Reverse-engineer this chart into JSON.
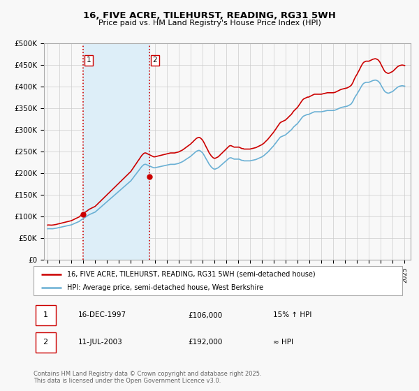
{
  "title": "16, FIVE ACRE, TILEHURST, READING, RG31 5WH",
  "subtitle": "Price paid vs. HM Land Registry's House Price Index (HPI)",
  "hpi_label": "HPI: Average price, semi-detached house, West Berkshire",
  "property_label": "16, FIVE ACRE, TILEHURST, READING, RG31 5WH (semi-detached house)",
  "sale1_label": "1",
  "sale1_date": "16-DEC-1997",
  "sale1_price": 106000,
  "sale1_hpi": "15% ↑ HPI",
  "sale2_label": "2",
  "sale2_date": "11-JUL-2003",
  "sale2_price": 192000,
  "sale2_hpi": "≈ HPI",
  "sale1_year": 1997.96,
  "sale2_year": 2003.53,
  "hpi_color": "#6ab0d4",
  "price_color": "#cc0000",
  "sale_marker_color": "#cc0000",
  "shading_color": "#ddeef8",
  "vline_color": "#cc0000",
  "grid_color": "#cccccc",
  "background_color": "#f8f8f8",
  "footer": "Contains HM Land Registry data © Crown copyright and database right 2025.\nThis data is licensed under the Open Government Licence v3.0.",
  "ylim": [
    0,
    500000
  ],
  "yticks": [
    0,
    50000,
    100000,
    150000,
    200000,
    250000,
    300000,
    350000,
    400000,
    450000,
    500000
  ],
  "xlim_start": 1994.7,
  "xlim_end": 2025.5,
  "hpi_data": [
    [
      1995.0,
      72000
    ],
    [
      1995.08,
      72200
    ],
    [
      1995.17,
      72100
    ],
    [
      1995.25,
      72000
    ],
    [
      1995.33,
      71800
    ],
    [
      1995.42,
      72000
    ],
    [
      1995.5,
      72300
    ],
    [
      1995.58,
      72600
    ],
    [
      1995.67,
      73000
    ],
    [
      1995.75,
      73400
    ],
    [
      1995.83,
      74000
    ],
    [
      1995.92,
      74500
    ],
    [
      1996.0,
      75000
    ],
    [
      1996.08,
      75500
    ],
    [
      1996.17,
      76000
    ],
    [
      1996.25,
      76500
    ],
    [
      1996.33,
      77000
    ],
    [
      1996.42,
      77500
    ],
    [
      1996.5,
      78000
    ],
    [
      1996.58,
      78500
    ],
    [
      1996.67,
      79000
    ],
    [
      1996.75,
      79500
    ],
    [
      1996.83,
      80000
    ],
    [
      1996.92,
      80500
    ],
    [
      1997.0,
      81000
    ],
    [
      1997.08,
      82000
    ],
    [
      1997.17,
      83000
    ],
    [
      1997.25,
      84000
    ],
    [
      1997.33,
      85000
    ],
    [
      1997.42,
      86000
    ],
    [
      1997.5,
      87000
    ],
    [
      1997.58,
      88000
    ],
    [
      1997.67,
      89000
    ],
    [
      1997.75,
      91000
    ],
    [
      1997.83,
      92500
    ],
    [
      1997.92,
      94000
    ],
    [
      1998.0,
      95500
    ],
    [
      1998.08,
      97000
    ],
    [
      1998.17,
      98500
    ],
    [
      1998.25,
      100000
    ],
    [
      1998.33,
      101500
    ],
    [
      1998.42,
      103000
    ],
    [
      1998.5,
      104500
    ],
    [
      1998.58,
      105500
    ],
    [
      1998.67,
      106500
    ],
    [
      1998.75,
      107500
    ],
    [
      1998.83,
      108500
    ],
    [
      1998.92,
      109500
    ],
    [
      1999.0,
      110500
    ],
    [
      1999.08,
      112500
    ],
    [
      1999.17,
      114500
    ],
    [
      1999.25,
      116500
    ],
    [
      1999.33,
      118500
    ],
    [
      1999.42,
      120500
    ],
    [
      1999.5,
      122500
    ],
    [
      1999.58,
      124500
    ],
    [
      1999.67,
      126500
    ],
    [
      1999.75,
      128500
    ],
    [
      1999.83,
      130500
    ],
    [
      1999.92,
      132500
    ],
    [
      2000.0,
      134500
    ],
    [
      2000.08,
      136500
    ],
    [
      2000.17,
      138500
    ],
    [
      2000.25,
      140500
    ],
    [
      2000.33,
      142500
    ],
    [
      2000.42,
      144500
    ],
    [
      2000.5,
      146500
    ],
    [
      2000.58,
      148500
    ],
    [
      2000.67,
      150500
    ],
    [
      2000.75,
      152500
    ],
    [
      2000.83,
      154500
    ],
    [
      2000.92,
      156500
    ],
    [
      2001.0,
      158500
    ],
    [
      2001.08,
      160500
    ],
    [
      2001.17,
      162500
    ],
    [
      2001.25,
      164500
    ],
    [
      2001.33,
      166500
    ],
    [
      2001.42,
      168500
    ],
    [
      2001.5,
      170500
    ],
    [
      2001.58,
      172500
    ],
    [
      2001.67,
      174500
    ],
    [
      2001.75,
      176500
    ],
    [
      2001.83,
      178500
    ],
    [
      2001.92,
      180500
    ],
    [
      2002.0,
      182500
    ],
    [
      2002.08,
      185500
    ],
    [
      2002.17,
      188500
    ],
    [
      2002.25,
      191500
    ],
    [
      2002.33,
      194500
    ],
    [
      2002.42,
      197500
    ],
    [
      2002.5,
      200500
    ],
    [
      2002.58,
      203500
    ],
    [
      2002.67,
      206500
    ],
    [
      2002.75,
      209500
    ],
    [
      2002.83,
      212500
    ],
    [
      2002.92,
      215500
    ],
    [
      2003.0,
      217500
    ],
    [
      2003.08,
      219500
    ],
    [
      2003.17,
      220500
    ],
    [
      2003.25,
      220500
    ],
    [
      2003.33,
      219500
    ],
    [
      2003.42,
      218500
    ],
    [
      2003.5,
      217500
    ],
    [
      2003.58,
      216500
    ],
    [
      2003.67,
      215500
    ],
    [
      2003.75,
      214500
    ],
    [
      2003.83,
      213500
    ],
    [
      2003.92,
      212500
    ],
    [
      2004.0,
      212500
    ],
    [
      2004.08,
      213000
    ],
    [
      2004.17,
      213500
    ],
    [
      2004.25,
      214000
    ],
    [
      2004.33,
      214500
    ],
    [
      2004.42,
      215000
    ],
    [
      2004.5,
      215500
    ],
    [
      2004.58,
      216000
    ],
    [
      2004.67,
      216500
    ],
    [
      2004.75,
      217000
    ],
    [
      2004.83,
      217500
    ],
    [
      2004.92,
      218000
    ],
    [
      2005.0,
      218500
    ],
    [
      2005.08,
      219000
    ],
    [
      2005.17,
      219500
    ],
    [
      2005.25,
      220000
    ],
    [
      2005.33,
      220500
    ],
    [
      2005.42,
      220500
    ],
    [
      2005.5,
      220500
    ],
    [
      2005.58,
      220500
    ],
    [
      2005.67,
      220500
    ],
    [
      2005.75,
      221000
    ],
    [
      2005.83,
      221500
    ],
    [
      2005.92,
      222000
    ],
    [
      2006.0,
      222500
    ],
    [
      2006.08,
      223500
    ],
    [
      2006.17,
      224500
    ],
    [
      2006.25,
      225500
    ],
    [
      2006.33,
      226500
    ],
    [
      2006.42,
      228000
    ],
    [
      2006.5,
      229500
    ],
    [
      2006.58,
      231000
    ],
    [
      2006.67,
      232500
    ],
    [
      2006.75,
      234000
    ],
    [
      2006.83,
      235500
    ],
    [
      2006.92,
      237000
    ],
    [
      2007.0,
      238500
    ],
    [
      2007.08,
      240500
    ],
    [
      2007.17,
      242500
    ],
    [
      2007.25,
      244500
    ],
    [
      2007.33,
      246500
    ],
    [
      2007.42,
      248500
    ],
    [
      2007.5,
      250500
    ],
    [
      2007.58,
      251500
    ],
    [
      2007.67,
      252500
    ],
    [
      2007.75,
      252500
    ],
    [
      2007.83,
      251500
    ],
    [
      2007.92,
      249500
    ],
    [
      2008.0,
      247500
    ],
    [
      2008.08,
      244500
    ],
    [
      2008.17,
      240500
    ],
    [
      2008.25,
      236500
    ],
    [
      2008.33,
      232500
    ],
    [
      2008.42,
      228500
    ],
    [
      2008.5,
      224500
    ],
    [
      2008.58,
      220500
    ],
    [
      2008.67,
      217500
    ],
    [
      2008.75,
      214500
    ],
    [
      2008.83,
      212500
    ],
    [
      2008.92,
      210500
    ],
    [
      2009.0,
      209500
    ],
    [
      2009.08,
      209500
    ],
    [
      2009.17,
      210500
    ],
    [
      2009.25,
      211500
    ],
    [
      2009.33,
      212500
    ],
    [
      2009.42,
      214500
    ],
    [
      2009.5,
      216500
    ],
    [
      2009.58,
      218500
    ],
    [
      2009.67,
      220500
    ],
    [
      2009.75,
      222500
    ],
    [
      2009.83,
      224500
    ],
    [
      2009.92,
      226500
    ],
    [
      2010.0,
      228500
    ],
    [
      2010.08,
      230500
    ],
    [
      2010.17,
      232500
    ],
    [
      2010.25,
      234500
    ],
    [
      2010.33,
      235500
    ],
    [
      2010.42,
      235500
    ],
    [
      2010.5,
      234500
    ],
    [
      2010.58,
      233500
    ],
    [
      2010.67,
      232500
    ],
    [
      2010.75,
      232500
    ],
    [
      2010.83,
      232500
    ],
    [
      2010.92,
      232500
    ],
    [
      2011.0,
      232500
    ],
    [
      2011.08,
      232500
    ],
    [
      2011.17,
      231500
    ],
    [
      2011.25,
      230500
    ],
    [
      2011.33,
      229500
    ],
    [
      2011.42,
      229500
    ],
    [
      2011.5,
      228500
    ],
    [
      2011.58,
      228500
    ],
    [
      2011.67,
      228500
    ],
    [
      2011.75,
      228500
    ],
    [
      2011.83,
      228500
    ],
    [
      2011.92,
      228500
    ],
    [
      2012.0,
      228500
    ],
    [
      2012.08,
      229000
    ],
    [
      2012.17,
      229500
    ],
    [
      2012.25,
      230000
    ],
    [
      2012.33,
      230500
    ],
    [
      2012.42,
      231000
    ],
    [
      2012.5,
      231500
    ],
    [
      2012.58,
      232500
    ],
    [
      2012.67,
      233500
    ],
    [
      2012.75,
      234500
    ],
    [
      2012.83,
      235500
    ],
    [
      2012.92,
      236500
    ],
    [
      2013.0,
      237500
    ],
    [
      2013.08,
      239000
    ],
    [
      2013.17,
      240500
    ],
    [
      2013.25,
      242500
    ],
    [
      2013.33,
      244500
    ],
    [
      2013.42,
      246500
    ],
    [
      2013.5,
      248500
    ],
    [
      2013.58,
      251000
    ],
    [
      2013.67,
      253500
    ],
    [
      2013.75,
      256000
    ],
    [
      2013.83,
      258500
    ],
    [
      2013.92,
      261000
    ],
    [
      2014.0,
      263500
    ],
    [
      2014.08,
      266500
    ],
    [
      2014.17,
      269500
    ],
    [
      2014.25,
      272500
    ],
    [
      2014.33,
      275500
    ],
    [
      2014.42,
      278500
    ],
    [
      2014.5,
      281500
    ],
    [
      2014.58,
      283500
    ],
    [
      2014.67,
      284500
    ],
    [
      2014.75,
      285500
    ],
    [
      2014.83,
      286500
    ],
    [
      2014.92,
      287500
    ],
    [
      2015.0,
      288500
    ],
    [
      2015.08,
      290500
    ],
    [
      2015.17,
      292500
    ],
    [
      2015.25,
      294500
    ],
    [
      2015.33,
      296500
    ],
    [
      2015.42,
      298500
    ],
    [
      2015.5,
      300500
    ],
    [
      2015.58,
      303500
    ],
    [
      2015.67,
      306500
    ],
    [
      2015.75,
      308500
    ],
    [
      2015.83,
      310500
    ],
    [
      2015.92,
      312500
    ],
    [
      2016.0,
      314500
    ],
    [
      2016.08,
      317500
    ],
    [
      2016.17,
      320500
    ],
    [
      2016.25,
      323500
    ],
    [
      2016.33,
      326500
    ],
    [
      2016.42,
      329500
    ],
    [
      2016.5,
      331500
    ],
    [
      2016.58,
      332500
    ],
    [
      2016.67,
      333500
    ],
    [
      2016.75,
      334500
    ],
    [
      2016.83,
      335500
    ],
    [
      2016.92,
      335500
    ],
    [
      2017.0,
      336500
    ],
    [
      2017.08,
      337500
    ],
    [
      2017.17,
      338500
    ],
    [
      2017.25,
      339500
    ],
    [
      2017.33,
      340500
    ],
    [
      2017.42,
      341500
    ],
    [
      2017.5,
      341500
    ],
    [
      2017.58,
      341500
    ],
    [
      2017.67,
      341500
    ],
    [
      2017.75,
      341500
    ],
    [
      2017.83,
      341500
    ],
    [
      2017.92,
      341500
    ],
    [
      2018.0,
      341500
    ],
    [
      2018.08,
      342000
    ],
    [
      2018.17,
      342500
    ],
    [
      2018.25,
      343000
    ],
    [
      2018.33,
      343500
    ],
    [
      2018.42,
      344000
    ],
    [
      2018.5,
      344500
    ],
    [
      2018.58,
      344500
    ],
    [
      2018.67,
      344500
    ],
    [
      2018.75,
      344500
    ],
    [
      2018.83,
      344500
    ],
    [
      2018.92,
      344500
    ],
    [
      2019.0,
      344500
    ],
    [
      2019.08,
      345000
    ],
    [
      2019.17,
      345500
    ],
    [
      2019.25,
      346500
    ],
    [
      2019.33,
      347500
    ],
    [
      2019.42,
      348500
    ],
    [
      2019.5,
      349500
    ],
    [
      2019.58,
      350500
    ],
    [
      2019.67,
      351500
    ],
    [
      2019.75,
      352000
    ],
    [
      2019.83,
      352500
    ],
    [
      2019.92,
      353000
    ],
    [
      2020.0,
      353500
    ],
    [
      2020.08,
      354000
    ],
    [
      2020.17,
      354500
    ],
    [
      2020.25,
      355500
    ],
    [
      2020.33,
      356500
    ],
    [
      2020.42,
      358000
    ],
    [
      2020.5,
      359500
    ],
    [
      2020.58,
      362500
    ],
    [
      2020.67,
      366500
    ],
    [
      2020.75,
      371500
    ],
    [
      2020.83,
      375500
    ],
    [
      2020.92,
      379500
    ],
    [
      2021.0,
      382500
    ],
    [
      2021.08,
      386500
    ],
    [
      2021.17,
      390500
    ],
    [
      2021.25,
      394500
    ],
    [
      2021.33,
      398500
    ],
    [
      2021.42,
      402500
    ],
    [
      2021.5,
      405500
    ],
    [
      2021.58,
      407500
    ],
    [
      2021.67,
      408500
    ],
    [
      2021.75,
      409500
    ],
    [
      2021.83,
      409500
    ],
    [
      2021.92,
      409500
    ],
    [
      2022.0,
      409500
    ],
    [
      2022.08,
      410500
    ],
    [
      2022.17,
      411500
    ],
    [
      2022.25,
      412500
    ],
    [
      2022.33,
      413500
    ],
    [
      2022.42,
      414000
    ],
    [
      2022.5,
      414500
    ],
    [
      2022.58,
      414500
    ],
    [
      2022.67,
      413500
    ],
    [
      2022.75,
      412500
    ],
    [
      2022.83,
      410500
    ],
    [
      2022.92,
      407500
    ],
    [
      2023.0,
      403500
    ],
    [
      2023.08,
      399500
    ],
    [
      2023.17,
      395500
    ],
    [
      2023.25,
      391500
    ],
    [
      2023.33,
      388500
    ],
    [
      2023.42,
      386500
    ],
    [
      2023.5,
      385500
    ],
    [
      2023.58,
      384500
    ],
    [
      2023.67,
      384500
    ],
    [
      2023.75,
      385500
    ],
    [
      2023.83,
      386500
    ],
    [
      2023.92,
      387500
    ],
    [
      2024.0,
      388500
    ],
    [
      2024.08,
      390500
    ],
    [
      2024.17,
      392500
    ],
    [
      2024.25,
      394500
    ],
    [
      2024.33,
      396500
    ],
    [
      2024.42,
      398500
    ],
    [
      2024.5,
      399500
    ],
    [
      2024.58,
      400500
    ],
    [
      2024.67,
      401000
    ],
    [
      2024.75,
      401500
    ],
    [
      2024.83,
      401500
    ],
    [
      2024.92,
      401000
    ],
    [
      2025.0,
      400500
    ]
  ]
}
